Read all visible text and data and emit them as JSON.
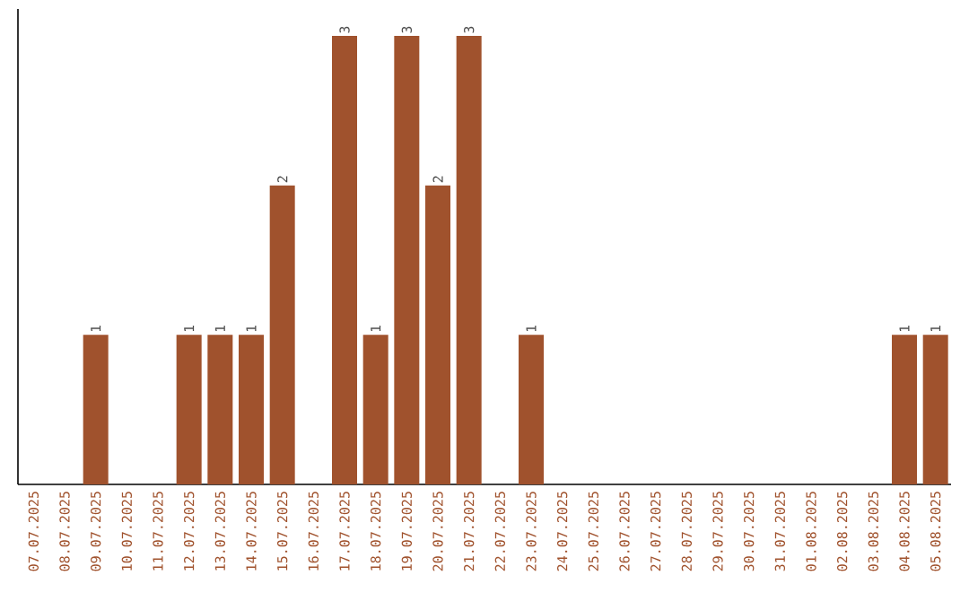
{
  "chart_data": {
    "type": "bar",
    "color": "#a0522d",
    "categories": [
      "07.07.2025",
      "08.07.2025",
      "09.07.2025",
      "10.07.2025",
      "11.07.2025",
      "12.07.2025",
      "13.07.2025",
      "14.07.2025",
      "15.07.2025",
      "16.07.2025",
      "17.07.2025",
      "18.07.2025",
      "19.07.2025",
      "20.07.2025",
      "21.07.2025",
      "22.07.2025",
      "23.07.2025",
      "24.07.2025",
      "25.07.2025",
      "26.07.2025",
      "27.07.2025",
      "28.07.2025",
      "29.07.2025",
      "30.07.2025",
      "31.07.2025",
      "01.08.2025",
      "02.08.2025",
      "03.08.2025",
      "04.08.2025",
      "05.08.2025"
    ],
    "values": [
      0,
      0,
      1,
      0,
      0,
      1,
      1,
      1,
      2,
      0,
      3,
      1,
      3,
      2,
      3,
      0,
      1,
      0,
      0,
      0,
      0,
      0,
      0,
      0,
      0,
      0,
      0,
      0,
      1,
      1
    ],
    "value_labels": [
      null,
      null,
      "1",
      null,
      null,
      "1",
      "1",
      "1",
      "2",
      null,
      "3",
      "1",
      "3",
      "2",
      "3",
      null,
      "1",
      null,
      null,
      null,
      null,
      null,
      null,
      null,
      null,
      null,
      null,
      null,
      "1",
      "1"
    ]
  }
}
